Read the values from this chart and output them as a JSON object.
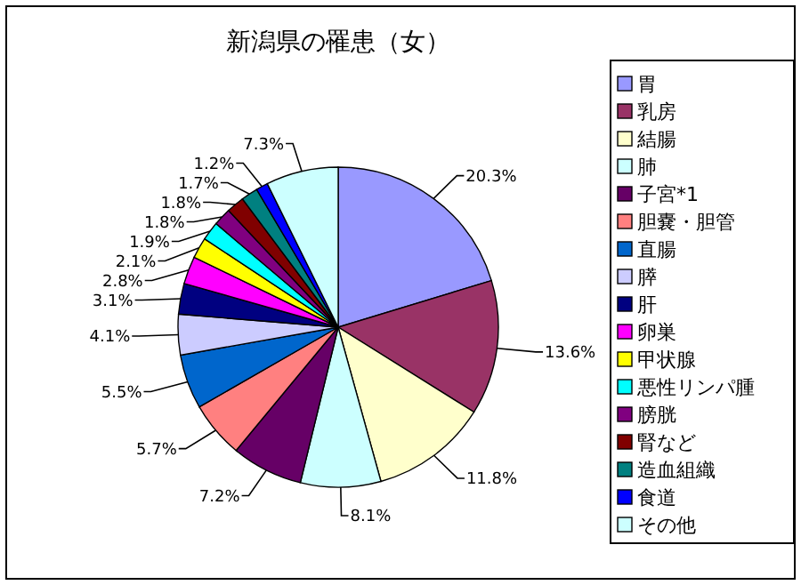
{
  "chart_data": {
    "type": "pie",
    "title": "新潟県の罹患（女）",
    "categories": [
      "胃",
      "乳房",
      "結腸",
      "肺",
      "子宮*1",
      "胆嚢・胆管",
      "直腸",
      "膵",
      "肝",
      "卵巣",
      "甲状腺",
      "悪性リンパ腫",
      "膀胱",
      "腎など",
      "造血組織",
      "食道",
      "その他"
    ],
    "values": [
      20.3,
      13.6,
      11.8,
      8.1,
      7.2,
      5.7,
      5.5,
      4.1,
      3.1,
      2.8,
      2.1,
      1.9,
      1.8,
      1.8,
      1.7,
      1.2,
      7.3
    ],
    "value_labels": [
      "20.3%",
      "13.6%",
      "11.8%",
      "8.1%",
      "7.2%",
      "5.7%",
      "5.5%",
      "4.1%",
      "3.1%",
      "2.8%",
      "2.1%",
      "1.9%",
      "1.8%",
      "1.8%",
      "1.7%",
      "1.2%",
      "7.3%"
    ],
    "colors": [
      "#9999ff",
      "#993366",
      "#ffffcc",
      "#ccffff",
      "#660066",
      "#ff8080",
      "#0066cc",
      "#ccccff",
      "#000080",
      "#ff00ff",
      "#ffff00",
      "#00ffff",
      "#800080",
      "#800000",
      "#008080",
      "#0000ff",
      "#ccffff"
    ],
    "legend": "right"
  }
}
